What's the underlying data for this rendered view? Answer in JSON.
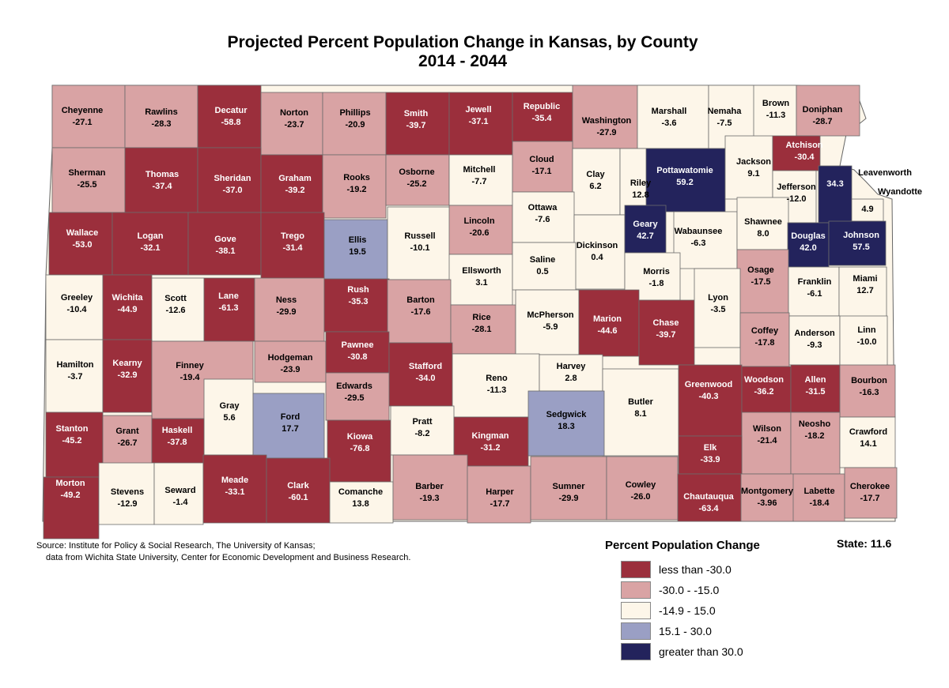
{
  "title": "Projected Percent Population Change in Kansas, by County",
  "subtitle": "2014 - 2044",
  "source_line1": "Source: Institute for Policy & Social Research, The University of Kansas;",
  "source_line2": "data from Wichita State University, Center for Economic Development and Business Research.",
  "state_total": "State: 11.6",
  "legend": {
    "title": "Percent Population Change",
    "items": [
      {
        "label": "less than -30.0",
        "color": "#9b2f3c"
      },
      {
        "label": "-30.0 - -15.0",
        "color": "#d9a3a4"
      },
      {
        "label": "-14.9 - 15.0",
        "color": "#fdf6e9"
      },
      {
        "label": "15.1 - 30.0",
        "color": "#9a9fc4"
      },
      {
        "label": "greater than 30.0",
        "color": "#23235c"
      }
    ]
  },
  "counties": [
    {
      "name": "Cheyenne",
      "value": "-27.1",
      "cls": 1
    },
    {
      "name": "Rawlins",
      "value": "-28.3",
      "cls": 1
    },
    {
      "name": "Decatur",
      "value": "-58.8",
      "cls": 0
    },
    {
      "name": "Norton",
      "value": "-23.7",
      "cls": 1
    },
    {
      "name": "Phillips",
      "value": "-20.9",
      "cls": 1
    },
    {
      "name": "Smith",
      "value": "-39.7",
      "cls": 0
    },
    {
      "name": "Jewell",
      "value": "-37.1",
      "cls": 0
    },
    {
      "name": "Republic",
      "value": "-35.4",
      "cls": 0
    },
    {
      "name": "Washington",
      "value": "-27.9",
      "cls": 1
    },
    {
      "name": "Marshall",
      "value": "-3.6",
      "cls": 2
    },
    {
      "name": "Nemaha",
      "value": "-7.5",
      "cls": 2
    },
    {
      "name": "Brown",
      "value": "-11.3",
      "cls": 2
    },
    {
      "name": "Doniphan",
      "value": "-28.7",
      "cls": 1
    },
    {
      "name": "Sherman",
      "value": "-25.5",
      "cls": 1
    },
    {
      "name": "Thomas",
      "value": "-37.4",
      "cls": 0
    },
    {
      "name": "Sheridan",
      "value": "-37.0",
      "cls": 0
    },
    {
      "name": "Graham",
      "value": "-39.2",
      "cls": 0
    },
    {
      "name": "Rooks",
      "value": "-19.2",
      "cls": 1
    },
    {
      "name": "Osborne",
      "value": "-25.2",
      "cls": 1
    },
    {
      "name": "Mitchell",
      "value": "-7.7",
      "cls": 2
    },
    {
      "name": "Cloud",
      "value": "-17.1",
      "cls": 1
    },
    {
      "name": "Clay",
      "value": "6.2",
      "cls": 2
    },
    {
      "name": "Riley",
      "value": "12.8",
      "cls": 2
    },
    {
      "name": "Pottawatomie",
      "value": "59.2",
      "cls": 4
    },
    {
      "name": "Jackson",
      "value": "9.1",
      "cls": 2
    },
    {
      "name": "Atchison",
      "value": "-30.4",
      "cls": 0
    },
    {
      "name": "Jefferson",
      "value": "-12.0",
      "cls": 2
    },
    {
      "name": "Leavenworth",
      "value": "34.3",
      "cls": 4
    },
    {
      "name": "Wyandotte",
      "value": "4.9",
      "cls": 2
    },
    {
      "name": "Wallace",
      "value": "-53.0",
      "cls": 0
    },
    {
      "name": "Logan",
      "value": "-32.1",
      "cls": 0
    },
    {
      "name": "Gove",
      "value": "-38.1",
      "cls": 0
    },
    {
      "name": "Trego",
      "value": "-31.4",
      "cls": 0
    },
    {
      "name": "Ellis",
      "value": "19.5",
      "cls": 3
    },
    {
      "name": "Russell",
      "value": "-10.1",
      "cls": 2
    },
    {
      "name": "Lincoln",
      "value": "-20.6",
      "cls": 1
    },
    {
      "name": "Ottawa",
      "value": "-7.6",
      "cls": 2
    },
    {
      "name": "Dickinson",
      "value": "0.4",
      "cls": 2
    },
    {
      "name": "Geary",
      "value": "42.7",
      "cls": 4
    },
    {
      "name": "Wabaunsee",
      "value": "-6.3",
      "cls": 2
    },
    {
      "name": "Shawnee",
      "value": "8.0",
      "cls": 2
    },
    {
      "name": "Douglas",
      "value": "42.0",
      "cls": 4
    },
    {
      "name": "Johnson",
      "value": "57.5",
      "cls": 4
    },
    {
      "name": "Ellsworth",
      "value": "3.1",
      "cls": 2
    },
    {
      "name": "Saline",
      "value": "0.5",
      "cls": 2
    },
    {
      "name": "Morris",
      "value": "-1.8",
      "cls": 2
    },
    {
      "name": "Osage",
      "value": "-17.5",
      "cls": 1
    },
    {
      "name": "Franklin",
      "value": "-6.1",
      "cls": 2
    },
    {
      "name": "Miami",
      "value": "12.7",
      "cls": 2
    },
    {
      "name": "Greeley",
      "value": "-10.4",
      "cls": 2
    },
    {
      "name": "Wichita",
      "value": "-44.9",
      "cls": 0
    },
    {
      "name": "Scott",
      "value": "-12.6",
      "cls": 2
    },
    {
      "name": "Lane",
      "value": "-61.3",
      "cls": 0
    },
    {
      "name": "Ness",
      "value": "-29.9",
      "cls": 1
    },
    {
      "name": "Rush",
      "value": "-35.3",
      "cls": 0
    },
    {
      "name": "Barton",
      "value": "-17.6",
      "cls": 1
    },
    {
      "name": "Rice",
      "value": "-28.1",
      "cls": 1
    },
    {
      "name": "McPherson",
      "value": "-5.9",
      "cls": 2
    },
    {
      "name": "Marion",
      "value": "-44.6",
      "cls": 0
    },
    {
      "name": "Chase",
      "value": "-39.7",
      "cls": 0
    },
    {
      "name": "Lyon",
      "value": "-3.5",
      "cls": 2
    },
    {
      "name": "Coffey",
      "value": "-17.8",
      "cls": 1
    },
    {
      "name": "Anderson",
      "value": "-9.3",
      "cls": 2
    },
    {
      "name": "Linn",
      "value": "-10.0",
      "cls": 2
    },
    {
      "name": "Hamilton",
      "value": "-3.7",
      "cls": 2
    },
    {
      "name": "Kearny",
      "value": "-32.9",
      "cls": 0
    },
    {
      "name": "Finney",
      "value": "-19.4",
      "cls": 1
    },
    {
      "name": "Hodgeman",
      "value": "-23.9",
      "cls": 1
    },
    {
      "name": "Pawnee",
      "value": "-30.8",
      "cls": 0
    },
    {
      "name": "Stafford",
      "value": "-34.0",
      "cls": 0
    },
    {
      "name": "Reno",
      "value": "-11.3",
      "cls": 2
    },
    {
      "name": "Harvey",
      "value": "2.8",
      "cls": 2
    },
    {
      "name": "Butler",
      "value": "8.1",
      "cls": 2
    },
    {
      "name": "Greenwood",
      "value": "-40.3",
      "cls": 0
    },
    {
      "name": "Woodson",
      "value": "-36.2",
      "cls": 0
    },
    {
      "name": "Allen",
      "value": "-31.5",
      "cls": 0
    },
    {
      "name": "Bourbon",
      "value": "-16.3",
      "cls": 1
    },
    {
      "name": "Gray",
      "value": "5.6",
      "cls": 2
    },
    {
      "name": "Edwards",
      "value": "-29.5",
      "cls": 1
    },
    {
      "name": "Ford",
      "value": "17.7",
      "cls": 3
    },
    {
      "name": "Stanton",
      "value": "-45.2",
      "cls": 0
    },
    {
      "name": "Grant",
      "value": "-26.7",
      "cls": 1
    },
    {
      "name": "Haskell",
      "value": "-37.8",
      "cls": 0
    },
    {
      "name": "Kiowa",
      "value": "-76.8",
      "cls": 0
    },
    {
      "name": "Pratt",
      "value": "-8.2",
      "cls": 2
    },
    {
      "name": "Kingman",
      "value": "-31.2",
      "cls": 0
    },
    {
      "name": "Sedgwick",
      "value": "18.3",
      "cls": 3
    },
    {
      "name": "Wilson",
      "value": "-21.4",
      "cls": 1
    },
    {
      "name": "Neosho",
      "value": "-18.2",
      "cls": 1
    },
    {
      "name": "Crawford",
      "value": "14.1",
      "cls": 2
    },
    {
      "name": "Elk",
      "value": "-33.9",
      "cls": 0
    },
    {
      "name": "Morton",
      "value": "-49.2",
      "cls": 0
    },
    {
      "name": "Stevens",
      "value": "-12.9",
      "cls": 2
    },
    {
      "name": "Seward",
      "value": "-1.4",
      "cls": 2
    },
    {
      "name": "Meade",
      "value": "-33.1",
      "cls": 0
    },
    {
      "name": "Clark",
      "value": "-60.1",
      "cls": 0
    },
    {
      "name": "Comanche",
      "value": "13.8",
      "cls": 2
    },
    {
      "name": "Barber",
      "value": "-19.3",
      "cls": 1
    },
    {
      "name": "Harper",
      "value": "-17.7",
      "cls": 1
    },
    {
      "name": "Sumner",
      "value": "-29.9",
      "cls": 1
    },
    {
      "name": "Cowley",
      "value": "-26.0",
      "cls": 1
    },
    {
      "name": "Chautauqua",
      "value": "-63.4",
      "cls": 0
    },
    {
      "name": "Montgomery",
      "value": "-3.96",
      "cls": 1
    },
    {
      "name": "Labette",
      "value": "-18.4",
      "cls": 1
    },
    {
      "name": "Cherokee",
      "value": "-17.7",
      "cls": 1
    }
  ]
}
